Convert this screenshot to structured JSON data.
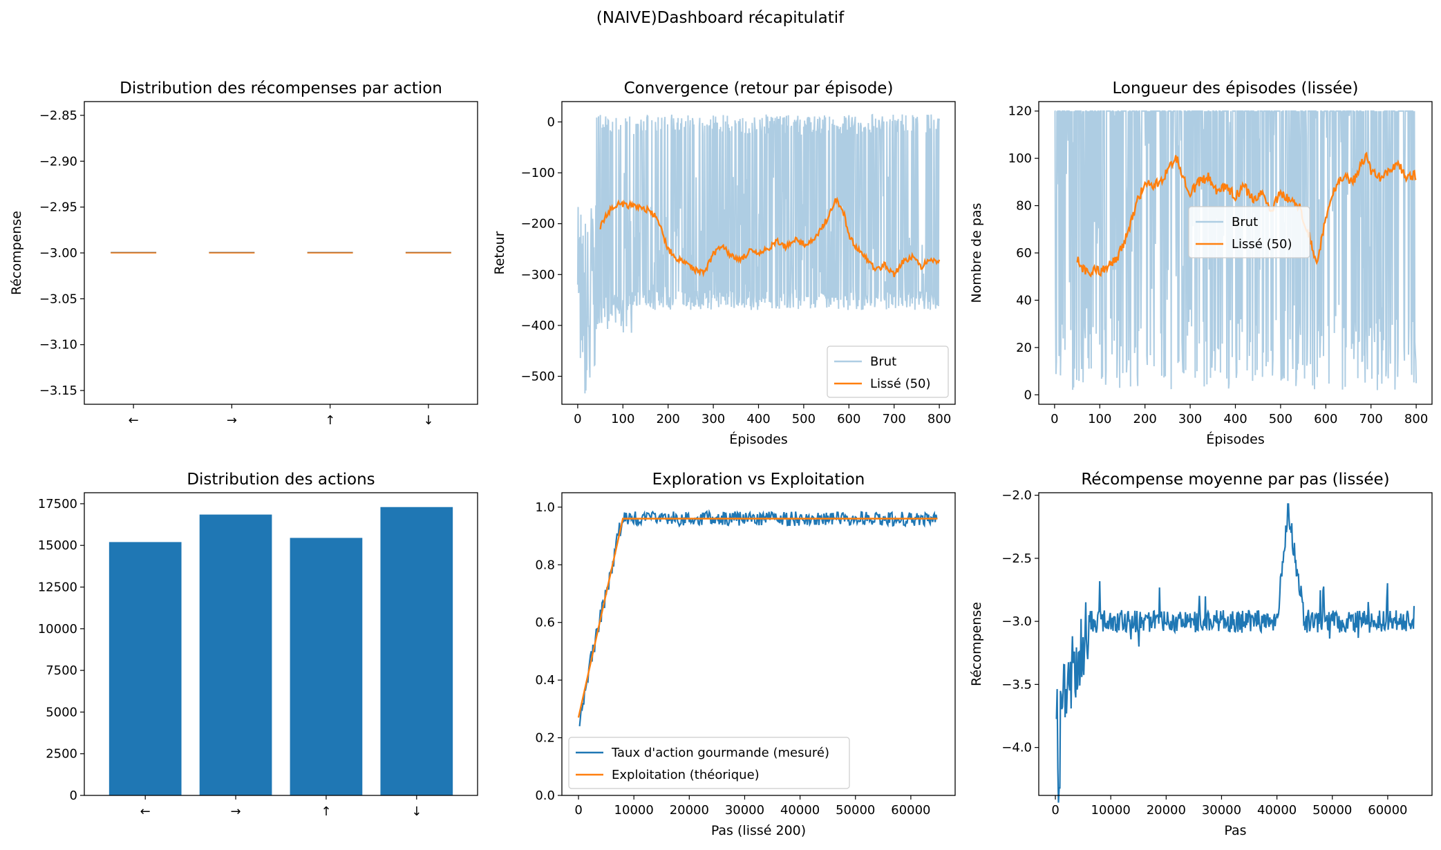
{
  "suptitle": "(NAIVE)Dashboard récapitulatif",
  "colors": {
    "blue": "#1f77b4",
    "orange": "#ff7f0e",
    "light_blue": "#aecde3"
  },
  "chart_data": [
    {
      "type": "box",
      "title": "Distribution des récompenses par action",
      "xlabel": "",
      "ylabel": "Récompense",
      "categories": [
        "←",
        "→",
        "↑",
        "↓"
      ],
      "medians": [
        -3.0,
        -3.0,
        -3.0,
        -3.0
      ],
      "ylim": [
        -3.165,
        -2.835
      ],
      "yticks": [
        -2.85,
        -2.9,
        -2.95,
        -3.0,
        -3.05,
        -3.1,
        -3.15
      ],
      "ytick_labels": [
        "−2.85",
        "−2.90",
        "−2.95",
        "−3.00",
        "−3.05",
        "−3.10",
        "−3.15"
      ]
    },
    {
      "type": "line",
      "title": "Convergence (retour par épisode)",
      "xlabel": "Épisodes",
      "ylabel": "Retour",
      "xlim": [
        -35,
        835
      ],
      "ylim": [
        -555,
        40
      ],
      "xticks": [
        0,
        100,
        200,
        300,
        400,
        500,
        600,
        700,
        800
      ],
      "yticks": [
        0,
        -100,
        -200,
        -300,
        -400,
        -500
      ],
      "ytick_labels": [
        "0",
        "−100",
        "−200",
        "−300",
        "−400",
        "−500"
      ],
      "legend": {
        "position": "lower-right",
        "entries": [
          "Brut",
          "Lissé (50)"
        ]
      },
      "series": [
        {
          "name": "Brut",
          "color": "#aecde3",
          "description": "raw per-episode return, oscillating between about -370 and 15, early episodes down to -525"
        },
        {
          "name": "Lissé (50)",
          "color": "#ff7f0e",
          "x": [
            50,
            60,
            70,
            80,
            90,
            100,
            120,
            140,
            160,
            170,
            180,
            200,
            220,
            240,
            260,
            280,
            300,
            320,
            340,
            360,
            380,
            400,
            420,
            440,
            460,
            480,
            500,
            520,
            540,
            560,
            570,
            580,
            590,
            600,
            620,
            640,
            660,
            680,
            700,
            720,
            740,
            760,
            780,
            800
          ],
          "y": [
            -205,
            -190,
            -175,
            -165,
            -160,
            -162,
            -165,
            -168,
            -175,
            -185,
            -200,
            -250,
            -270,
            -278,
            -290,
            -295,
            -260,
            -240,
            -265,
            -270,
            -255,
            -260,
            -250,
            -235,
            -245,
            -230,
            -240,
            -235,
            -210,
            -175,
            -155,
            -162,
            -185,
            -225,
            -250,
            -270,
            -290,
            -280,
            -300,
            -275,
            -265,
            -285,
            -270,
            -275
          ]
        }
      ]
    },
    {
      "type": "line",
      "title": "Longueur des épisodes (lissée)",
      "xlabel": "Épisodes",
      "ylabel": "Nombre de pas",
      "xlim": [
        -35,
        835
      ],
      "ylim": [
        -4,
        124
      ],
      "xticks": [
        0,
        100,
        200,
        300,
        400,
        500,
        600,
        700,
        800
      ],
      "yticks": [
        0,
        20,
        40,
        60,
        80,
        100,
        120
      ],
      "legend": {
        "position": "center-right",
        "entries": [
          "Brut",
          "Lissé (50)"
        ]
      },
      "series": [
        {
          "name": "Brut",
          "color": "#aecde3",
          "description": "raw episode length, oscillating between about 2 and 120"
        },
        {
          "name": "Lissé (50)",
          "color": "#ff7f0e",
          "x": [
            50,
            60,
            70,
            80,
            90,
            100,
            120,
            140,
            160,
            180,
            200,
            220,
            240,
            260,
            270,
            280,
            300,
            320,
            340,
            360,
            380,
            400,
            420,
            440,
            460,
            480,
            500,
            520,
            540,
            560,
            580,
            600,
            620,
            640,
            660,
            680,
            690,
            700,
            720,
            740,
            760,
            780,
            800
          ],
          "y": [
            58,
            54,
            52,
            51,
            53,
            52,
            55,
            58,
            68,
            80,
            90,
            88,
            92,
            98,
            100,
            95,
            85,
            90,
            92,
            86,
            88,
            84,
            88,
            82,
            85,
            78,
            86,
            82,
            80,
            70,
            55,
            75,
            88,
            92,
            90,
            98,
            101,
            94,
            92,
            95,
            98,
            92,
            93
          ]
        }
      ]
    },
    {
      "type": "bar",
      "title": "Distribution des actions",
      "xlabel": "",
      "ylabel": "",
      "categories": [
        "←",
        "→",
        "↑",
        "↓"
      ],
      "values": [
        15200,
        16850,
        15450,
        17300
      ],
      "ylim": [
        0,
        18160
      ],
      "yticks": [
        0,
        2500,
        5000,
        7500,
        10000,
        12500,
        15000,
        17500
      ]
    },
    {
      "type": "line",
      "title": "Exploration vs Exploitation",
      "xlabel": "Pas (lissé 200)",
      "ylabel": "",
      "xlim": [
        -3000,
        68000
      ],
      "ylim": [
        0,
        1.05
      ],
      "xticks": [
        0,
        10000,
        20000,
        30000,
        40000,
        50000,
        60000
      ],
      "yticks": [
        0.0,
        0.2,
        0.4,
        0.6,
        0.8,
        1.0
      ],
      "ytick_labels": [
        "0.0",
        "0.2",
        "0.4",
        "0.6",
        "0.8",
        "1.0"
      ],
      "legend": {
        "position": "lower-left",
        "entries": [
          "Taux d'action gourmande (mesuré)",
          "Exploitation (théorique)"
        ]
      },
      "series": [
        {
          "name": "Taux d'action gourmande (mesuré)",
          "color": "#1f77b4",
          "x": [
            200,
            1000,
            2000,
            3000,
            4000,
            5000,
            6000,
            7000,
            8000,
            10000,
            20000,
            30000,
            40000,
            50000,
            60000,
            64800
          ],
          "y": [
            0.27,
            0.35,
            0.45,
            0.53,
            0.62,
            0.7,
            0.79,
            0.88,
            0.97,
            0.96,
            0.96,
            0.96,
            0.96,
            0.96,
            0.96,
            0.96
          ]
        },
        {
          "name": "Exploitation (théorique)",
          "color": "#ff7f0e",
          "x": [
            0,
            8000,
            64800
          ],
          "y": [
            0.27,
            0.96,
            0.96
          ]
        }
      ]
    },
    {
      "type": "line",
      "title": "Récompense moyenne par pas (lissée)",
      "xlabel": "Pas",
      "ylabel": "Récompense",
      "xlim": [
        -3000,
        68000
      ],
      "ylim": [
        -4.38,
        -1.98
      ],
      "xticks": [
        0,
        10000,
        20000,
        30000,
        40000,
        50000,
        60000
      ],
      "yticks": [
        -2.0,
        -2.5,
        -3.0,
        -3.5,
        -4.0
      ],
      "ytick_labels": [
        "−2.0",
        "−2.5",
        "−3.0",
        "−3.5",
        "−4.0"
      ],
      "series": [
        {
          "name": "",
          "color": "#1f77b4",
          "x": [
            200,
            600,
            1000,
            2000,
            3000,
            4000,
            5000,
            6000,
            8000,
            10000,
            15000,
            20000,
            25000,
            30000,
            35000,
            40000,
            42000,
            45000,
            50000,
            55000,
            60000,
            64800
          ],
          "y": [
            -3.5,
            -4.3,
            -3.6,
            -3.5,
            -3.4,
            -3.3,
            -3.2,
            -3.0,
            -3.0,
            -3.0,
            -3.0,
            -3.0,
            -3.0,
            -3.0,
            -3.0,
            -3.0,
            -2.1,
            -3.0,
            -3.0,
            -3.0,
            -3.0,
            -3.0
          ]
        }
      ]
    }
  ]
}
